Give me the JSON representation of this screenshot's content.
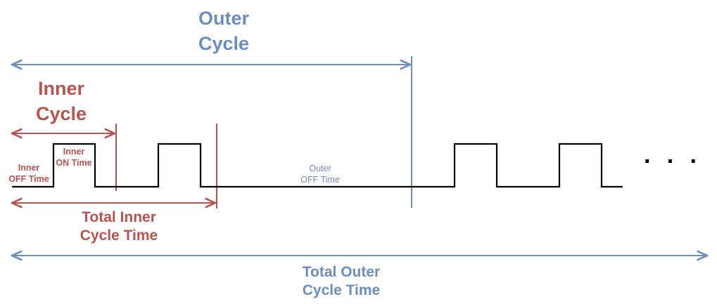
{
  "colors": {
    "outer": "#6c8ebf",
    "inner": "#b85450",
    "signal": "#000000"
  },
  "labels": {
    "outer_cycle": [
      "Outer",
      "Cycle"
    ],
    "inner_cycle": [
      "Inner",
      "Cycle"
    ],
    "inner_off_time": [
      "Inner",
      "OFF Time"
    ],
    "inner_on_time": [
      "Inner",
      "ON Time"
    ],
    "outer_off_time": [
      "Outer",
      "OFF Time"
    ],
    "total_inner_cycle_time": [
      "Total Inner",
      "Cycle Time"
    ],
    "total_outer_cycle_time": [
      "Total Outer",
      "Cycle Time"
    ],
    "continuation": "· · ·"
  }
}
